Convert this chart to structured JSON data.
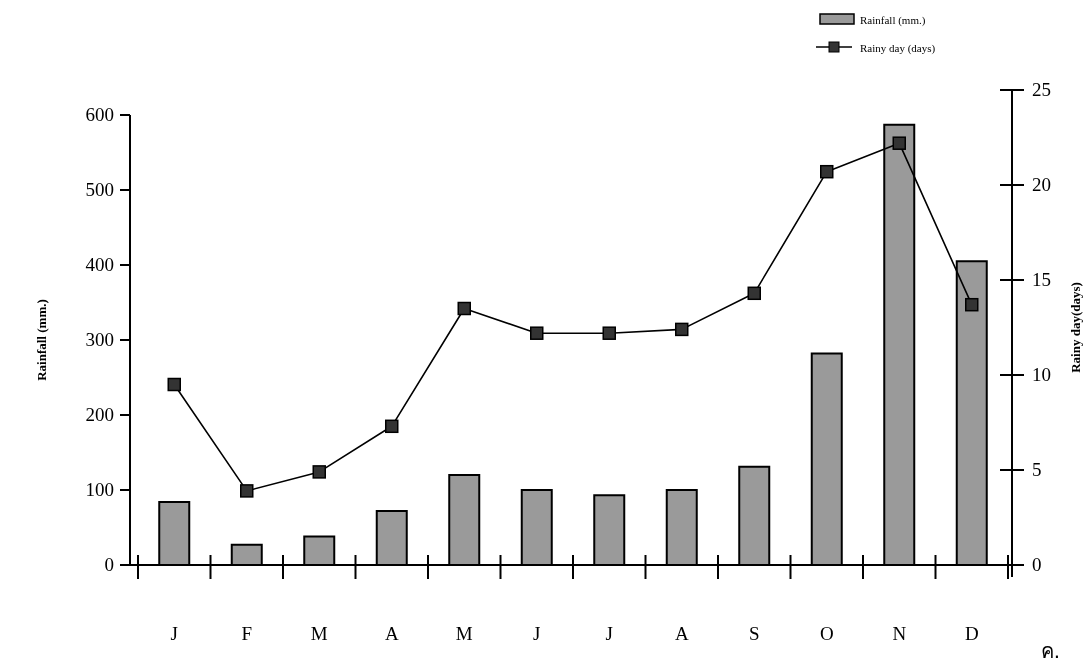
{
  "chart_data": {
    "type": "bar",
    "categories": [
      "J",
      "F",
      "M",
      "A",
      "M",
      "J",
      "J",
      "A",
      "S",
      "O",
      "N",
      "D"
    ],
    "ylabel": "Rainfall (mm.)",
    "y2label": "Rainy day(days)",
    "ylim": [
      0,
      600
    ],
    "yticks": [
      0,
      100,
      200,
      300,
      400,
      500,
      600
    ],
    "y2lim": [
      0,
      25
    ],
    "y2ticks": [
      0,
      5,
      10,
      15,
      20,
      25
    ],
    "marker": "square",
    "legend": "top right",
    "annotations": [
      "ค."
    ],
    "series": [
      {
        "name": "Rainfall (mm.)",
        "color": "#9a9a9a",
        "values": [
          84,
          27,
          38,
          72,
          120,
          100,
          93,
          100,
          131,
          282,
          587,
          405
        ]
      },
      {
        "name": "Rainy day (days)",
        "type": "line",
        "axis": "y2",
        "color": "#000000",
        "values": [
          9.5,
          3.9,
          4.9,
          7.3,
          13.5,
          12.2,
          12.2,
          12.4,
          14.3,
          20.7,
          22.2,
          13.7
        ]
      }
    ]
  }
}
